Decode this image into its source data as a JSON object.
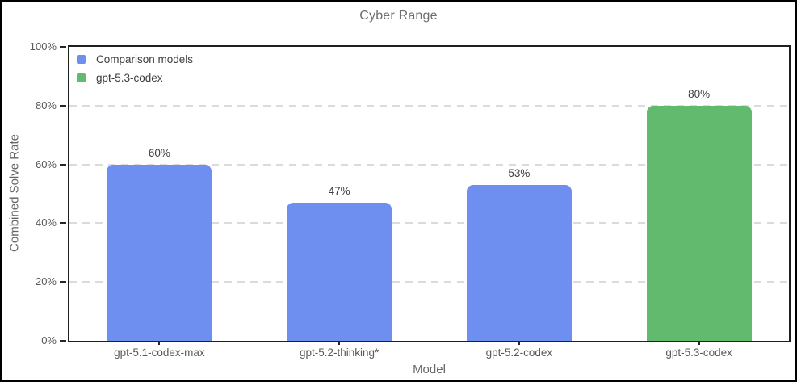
{
  "chart_data": {
    "type": "bar",
    "title": "Cyber Range",
    "xlabel": "Model",
    "ylabel": "Combined Solve Rate",
    "categories": [
      "gpt-5.1-codex-max",
      "gpt-5.2-thinking*",
      "gpt-5.2-codex",
      "gpt-5.3-codex"
    ],
    "values": [
      60,
      47,
      53,
      80
    ],
    "value_labels": [
      "60%",
      "47%",
      "53%",
      "80%"
    ],
    "bar_colors": [
      "#6e8ef0",
      "#6e8ef0",
      "#6e8ef0",
      "#61ba6e"
    ],
    "ylim": [
      0,
      100
    ],
    "yticks": [
      0,
      20,
      40,
      60,
      80,
      100
    ],
    "ytick_labels": [
      "0%",
      "20%",
      "40%",
      "60%",
      "80%",
      "100%"
    ],
    "grid": {
      "horizontal": true,
      "style": "dashed",
      "color": "#dbdbdb"
    },
    "legend": {
      "position": "upper-left",
      "entries": [
        {
          "label": "Comparison models",
          "color": "#6e8ef0"
        },
        {
          "label": "gpt-5.3-codex",
          "color": "#61ba6e"
        }
      ]
    },
    "style": {
      "bar_blue": "#6e8ef0",
      "bar_green": "#61ba6e",
      "spine_color": "#1f1f1f",
      "grid_color": "#dbdbdb",
      "title_color": "#6e6e6e",
      "axis_label_color": "#666666",
      "tick_label_color": "#595959",
      "value_label_color": "#3d3d3d",
      "outer_border_color": "#000000"
    }
  }
}
